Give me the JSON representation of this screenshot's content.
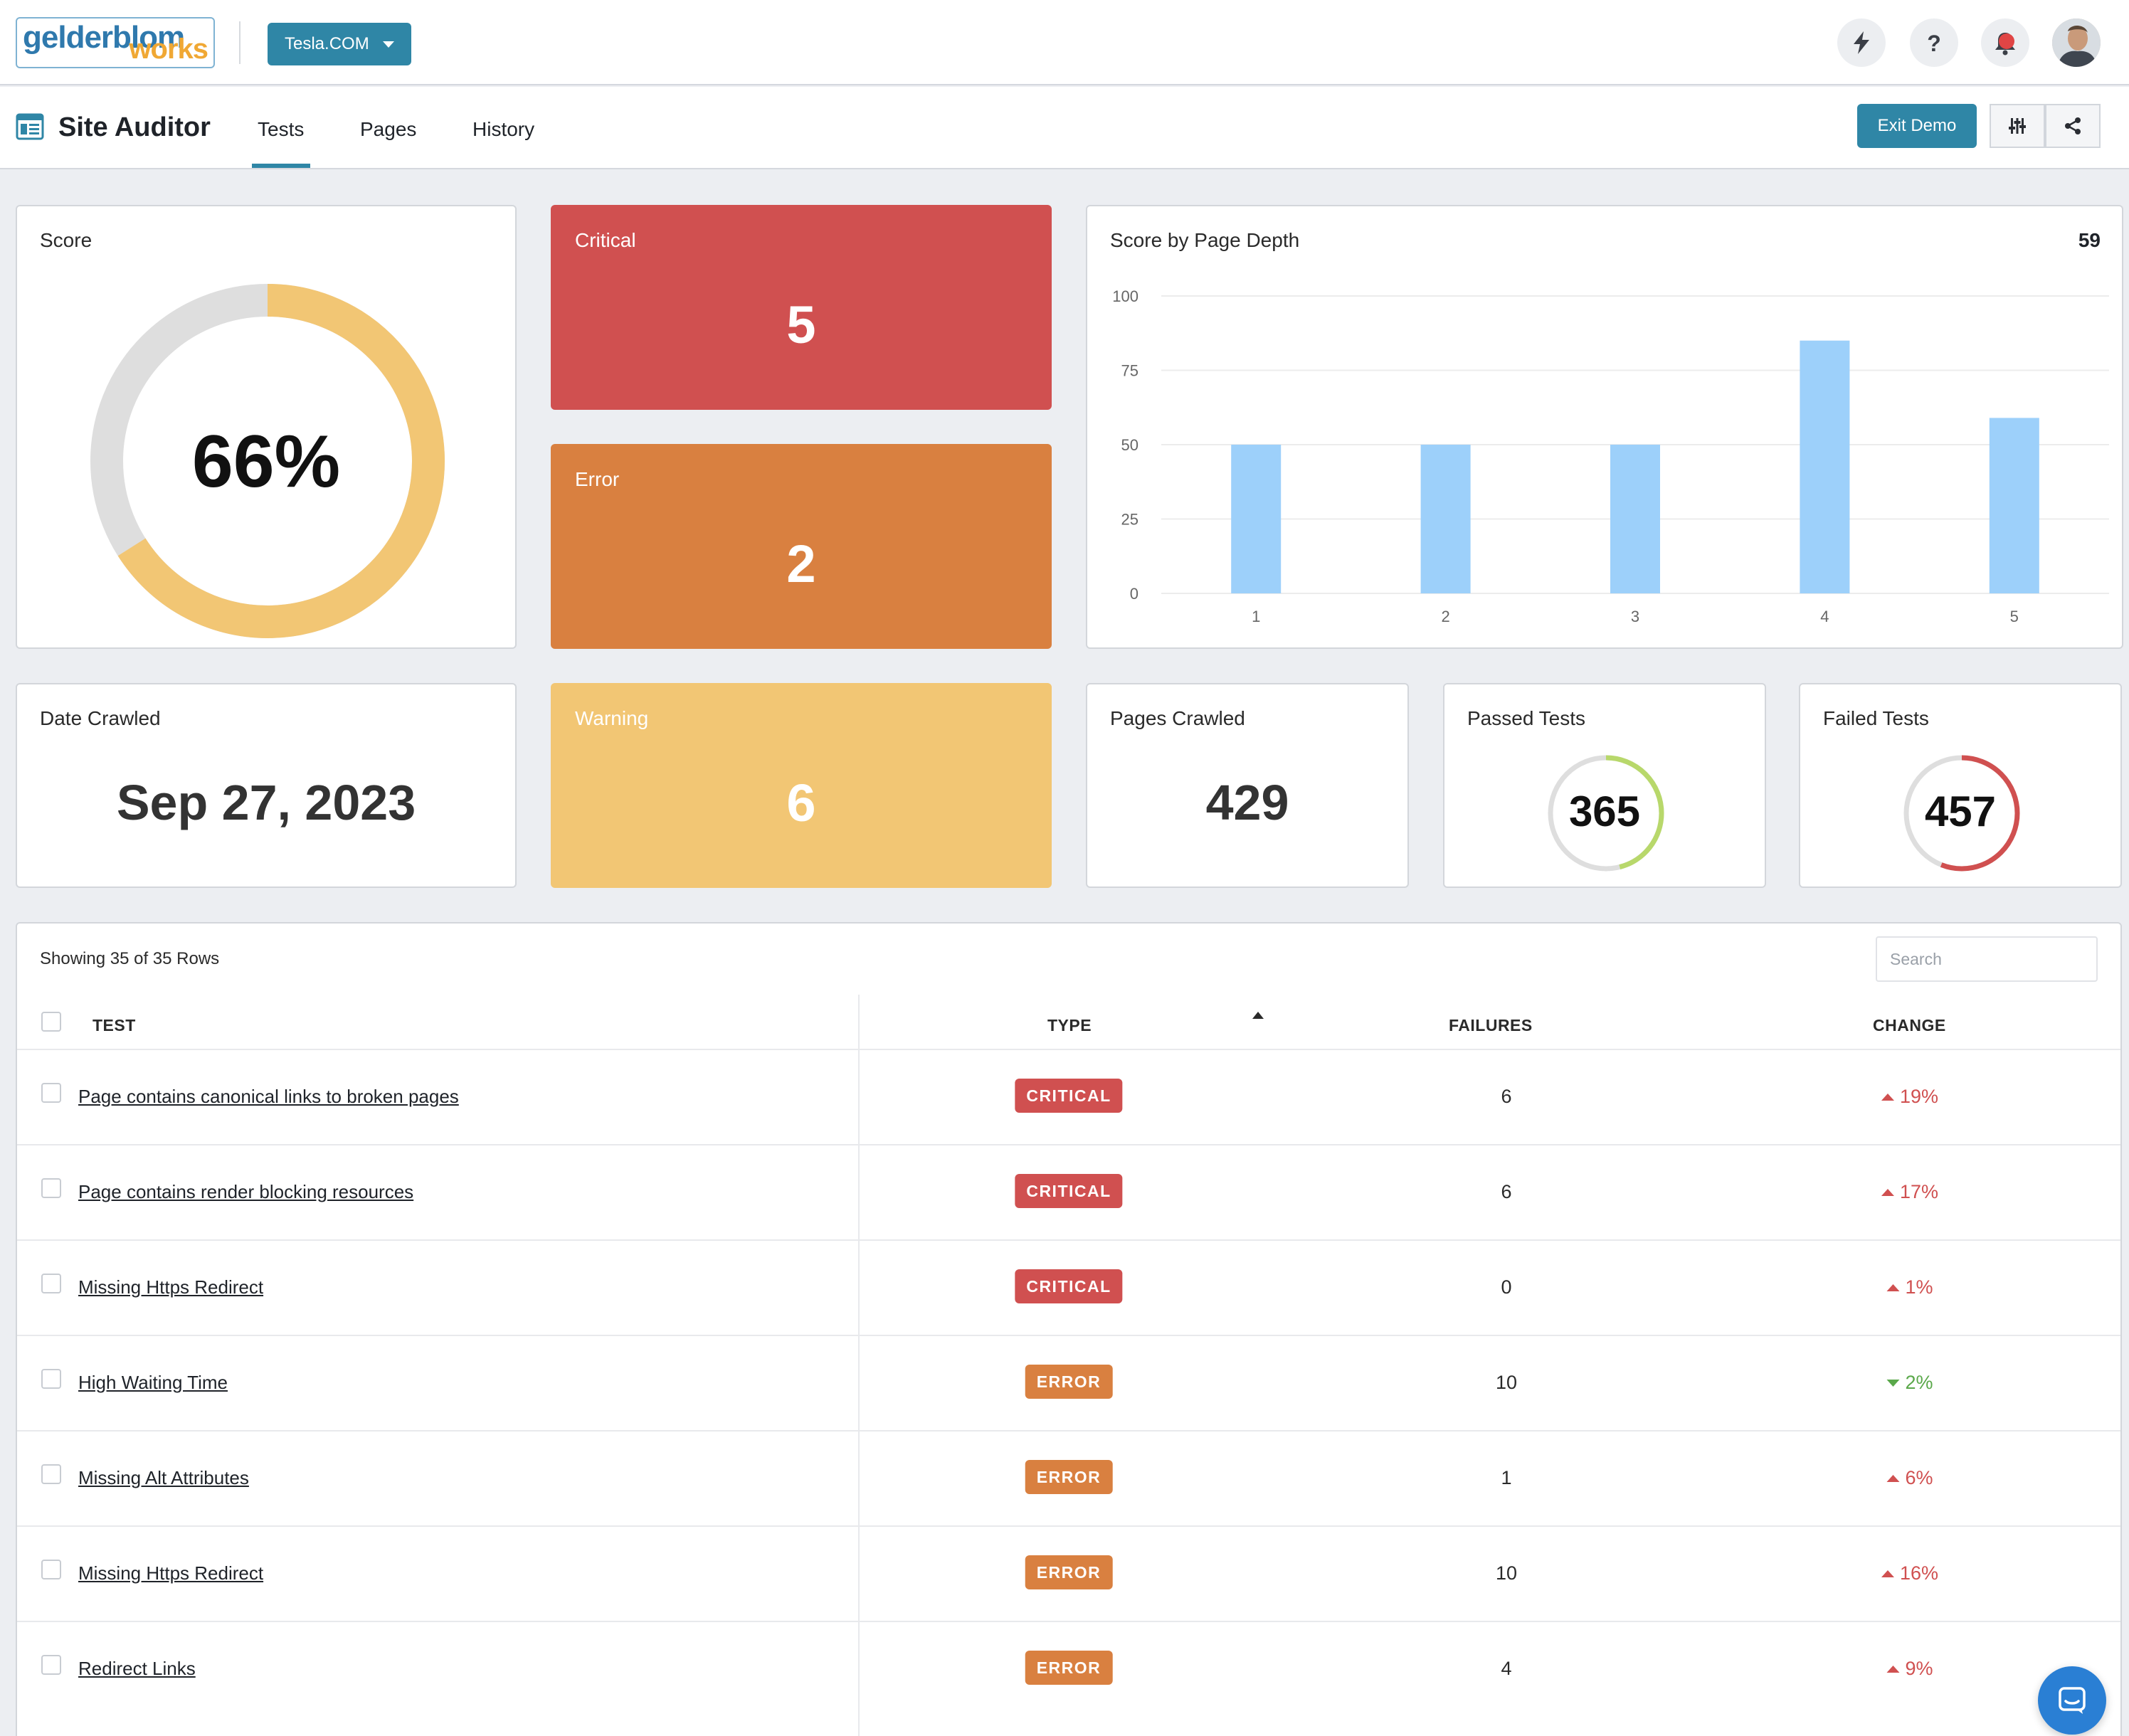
{
  "colors": {
    "accent": "#2f86a6",
    "critical": "#d05050",
    "error": "#d98040",
    "warning": "#f2c674",
    "score_fill": "#f2c674",
    "score_track": "#dedede",
    "bar": "#9dd0fa",
    "passed_ring": "#b8d86b",
    "failed_ring": "#d05050",
    "change_up": "#d05050",
    "change_down": "#5aa84a"
  },
  "header": {
    "logo_line1": "gelderblom",
    "logo_line2": "works",
    "site_selector": "Tesla.COM",
    "icons": [
      "bolt-icon",
      "help-icon",
      "notification-icon",
      "user-avatar"
    ]
  },
  "subnav": {
    "app_title": "Site Auditor",
    "tabs": [
      "Tests",
      "Pages",
      "History"
    ],
    "active_tab": "Tests",
    "exit_demo": "Exit Demo",
    "icons": [
      "sliders-icon",
      "share-icon"
    ]
  },
  "cards": {
    "score": {
      "label": "Score",
      "value": "66%",
      "fraction": 0.66
    },
    "critical": {
      "label": "Critical",
      "value": "5"
    },
    "error": {
      "label": "Error",
      "value": "2"
    },
    "warning": {
      "label": "Warning",
      "value": "6"
    },
    "date_crawled": {
      "label": "Date Crawled",
      "value": "Sep 27, 2023"
    },
    "pages_crawled": {
      "label": "Pages Crawled",
      "value": "429"
    },
    "passed_tests": {
      "label": "Passed Tests",
      "value": "365",
      "ring_fraction": 0.46
    },
    "failed_tests": {
      "label": "Failed Tests",
      "value": "457",
      "ring_fraction": 0.56
    }
  },
  "chart_data": {
    "type": "bar",
    "title": "Score by Page Depth",
    "headline_value": "59",
    "categories": [
      "1",
      "2",
      "3",
      "4",
      "5"
    ],
    "values": [
      50,
      50,
      50,
      85,
      59
    ],
    "ylim": [
      0,
      100
    ],
    "yticks": [
      "0",
      "25",
      "50",
      "75",
      "100"
    ],
    "grid": true,
    "legend": "none"
  },
  "table": {
    "rows_label": "Showing 35 of 35 Rows",
    "search_placeholder": "Search",
    "columns": [
      "TEST",
      "TYPE",
      "FAILURES",
      "CHANGE"
    ],
    "sorted_column": "TYPE",
    "rows": [
      {
        "test": "Page contains canonical links to broken pages",
        "type": "CRITICAL",
        "failures": "6",
        "change": "19%",
        "direction": "up"
      },
      {
        "test": "Page contains render blocking resources",
        "type": "CRITICAL",
        "failures": "6",
        "change": "17%",
        "direction": "up"
      },
      {
        "test": "Missing Https Redirect",
        "type": "CRITICAL",
        "failures": "0",
        "change": "1%",
        "direction": "up"
      },
      {
        "test": "High Waiting Time",
        "type": "ERROR",
        "failures": "10",
        "change": "2%",
        "direction": "down"
      },
      {
        "test": "Missing Alt Attributes",
        "type": "ERROR",
        "failures": "1",
        "change": "6%",
        "direction": "up"
      },
      {
        "test": "Missing Https Redirect",
        "type": "ERROR",
        "failures": "10",
        "change": "16%",
        "direction": "up"
      },
      {
        "test": "Redirect Links",
        "type": "ERROR",
        "failures": "4",
        "change": "9%",
        "direction": "up"
      }
    ]
  }
}
